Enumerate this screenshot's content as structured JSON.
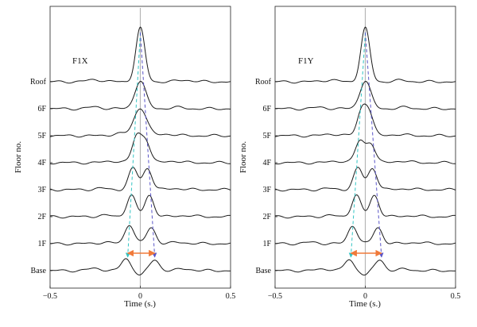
{
  "colors": {
    "trace": "#1a1a1a",
    "center_line": "#b5b5b5",
    "cyan_arrow": "#33c4c4",
    "blue_arrow": "#5a55c8",
    "orange_arrow": "#f07a3a"
  },
  "chart_data": [
    {
      "type": "line",
      "title": "F1X",
      "xlabel": "Time (s.)",
      "ylabel": "Floor no.",
      "xlim": [
        -0.5,
        0.5
      ],
      "xticks": [
        "−0.5",
        "0",
        "0.5"
      ],
      "yticks": [
        "Base",
        "1F",
        "2F",
        "3F",
        "4F",
        "5F",
        "6F",
        "Roof"
      ],
      "grid": false,
      "series": [
        {
          "floor": "Base",
          "peaks": [
            [
              -0.08,
              0.55,
              0.025
            ],
            [
              0.08,
              0.5,
              0.025
            ],
            [
              -0.25,
              0.1,
              0.04
            ],
            [
              0.25,
              0.08,
              0.04
            ],
            [
              0.0,
              -0.2,
              0.02
            ]
          ]
        },
        {
          "floor": "1F",
          "peaks": [
            [
              -0.06,
              0.9,
              0.025
            ],
            [
              0.06,
              0.75,
              0.025
            ],
            [
              -0.2,
              0.06,
              0.04
            ],
            [
              0.22,
              0.06,
              0.04
            ]
          ]
        },
        {
          "floor": "2F",
          "peaks": [
            [
              -0.05,
              1.0,
              0.025
            ],
            [
              0.05,
              1.0,
              0.025
            ],
            [
              -0.2,
              0.06,
              0.04
            ],
            [
              0.25,
              0.06,
              0.04
            ]
          ]
        },
        {
          "floor": "3F",
          "peaks": [
            [
              -0.04,
              1.0,
              0.025
            ],
            [
              0.04,
              1.0,
              0.025
            ],
            [
              -0.22,
              0.06,
              0.04
            ],
            [
              0.2,
              0.06,
              0.04
            ]
          ]
        },
        {
          "floor": "4F",
          "peaks": [
            [
              -0.02,
              1.2,
              0.025
            ],
            [
              0.03,
              1.0,
              0.025
            ],
            [
              -0.15,
              0.08,
              0.04
            ],
            [
              0.18,
              0.08,
              0.04
            ]
          ]
        },
        {
          "floor": "5F",
          "peaks": [
            [
              0.0,
              1.3,
              0.035
            ],
            [
              -0.12,
              0.1,
              0.04
            ],
            [
              0.15,
              0.08,
              0.04
            ]
          ]
        },
        {
          "floor": "6F",
          "peaks": [
            [
              0.0,
              1.3,
              0.03
            ],
            [
              -0.25,
              0.08,
              0.04
            ],
            [
              0.2,
              0.06,
              0.04
            ]
          ]
        },
        {
          "floor": "Roof",
          "peaks": [
            [
              0.0,
              2.5,
              0.025
            ],
            [
              -0.25,
              0.1,
              0.04
            ],
            [
              0.25,
              0.08,
              0.04
            ]
          ]
        }
      ],
      "annotations": {
        "cyan_arrow": {
          "from": [
            0.0,
            "Roof"
          ],
          "to": [
            -0.07,
            "Base"
          ]
        },
        "blue_arrow": {
          "from": [
            0.0,
            "Roof"
          ],
          "to": [
            0.08,
            "Base"
          ]
        },
        "orange_double_arrow": {
          "x": [
            -0.07,
            0.08
          ],
          "floor": "Base"
        }
      }
    },
    {
      "type": "line",
      "title": "F1Y",
      "xlabel": "Time (s.)",
      "ylabel": "Floor no.",
      "xlim": [
        -0.5,
        0.5
      ],
      "xticks": [
        "−0.5",
        "0",
        "0.5"
      ],
      "yticks": [
        "Base",
        "1F",
        "2F",
        "3F",
        "4F",
        "5F",
        "6F",
        "Roof"
      ],
      "grid": false,
      "series": [
        {
          "floor": "Base",
          "peaks": [
            [
              -0.09,
              0.5,
              0.025
            ],
            [
              0.08,
              0.5,
              0.025
            ],
            [
              -0.22,
              0.08,
              0.04
            ],
            [
              0.22,
              0.06,
              0.04
            ],
            [
              0.0,
              -0.2,
              0.02
            ]
          ]
        },
        {
          "floor": "1F",
          "peaks": [
            [
              -0.07,
              0.85,
              0.025
            ],
            [
              0.07,
              0.75,
              0.025
            ],
            [
              -0.3,
              0.06,
              0.04
            ],
            [
              0.28,
              0.06,
              0.04
            ]
          ]
        },
        {
          "floor": "2F",
          "peaks": [
            [
              -0.05,
              1.0,
              0.025
            ],
            [
              0.05,
              1.0,
              0.025
            ],
            [
              -0.2,
              0.05,
              0.04
            ],
            [
              0.25,
              0.05,
              0.04
            ]
          ]
        },
        {
          "floor": "3F",
          "peaks": [
            [
              -0.04,
              1.0,
              0.025
            ],
            [
              0.04,
              1.0,
              0.025
            ],
            [
              -0.2,
              0.05,
              0.04
            ],
            [
              0.22,
              0.05,
              0.04
            ]
          ]
        },
        {
          "floor": "4F",
          "peaks": [
            [
              -0.03,
              1.0,
              0.025
            ],
            [
              0.03,
              0.9,
              0.025
            ],
            [
              -0.15,
              0.08,
              0.04
            ],
            [
              0.2,
              0.08,
              0.04
            ]
          ]
        },
        {
          "floor": "5F",
          "peaks": [
            [
              -0.02,
              1.1,
              0.025
            ],
            [
              0.02,
              1.0,
              0.025
            ],
            [
              -0.18,
              0.08,
              0.04
            ],
            [
              0.18,
              0.06,
              0.04
            ]
          ]
        },
        {
          "floor": "6F",
          "peaks": [
            [
              0.0,
              1.3,
              0.03
            ],
            [
              -0.25,
              0.06,
              0.04
            ],
            [
              0.22,
              0.06,
              0.04
            ]
          ]
        },
        {
          "floor": "Roof",
          "peaks": [
            [
              0.0,
              2.5,
              0.025
            ],
            [
              -0.2,
              0.08,
              0.04
            ],
            [
              0.2,
              0.06,
              0.04
            ]
          ]
        }
      ],
      "annotations": {
        "cyan_arrow": {
          "from": [
            0.0,
            "Roof"
          ],
          "to": [
            -0.08,
            "Base"
          ]
        },
        "blue_arrow": {
          "from": [
            0.0,
            "Roof"
          ],
          "to": [
            0.09,
            "Base"
          ]
        },
        "orange_double_arrow": {
          "x": [
            -0.08,
            0.09
          ],
          "floor": "Base"
        }
      }
    }
  ]
}
